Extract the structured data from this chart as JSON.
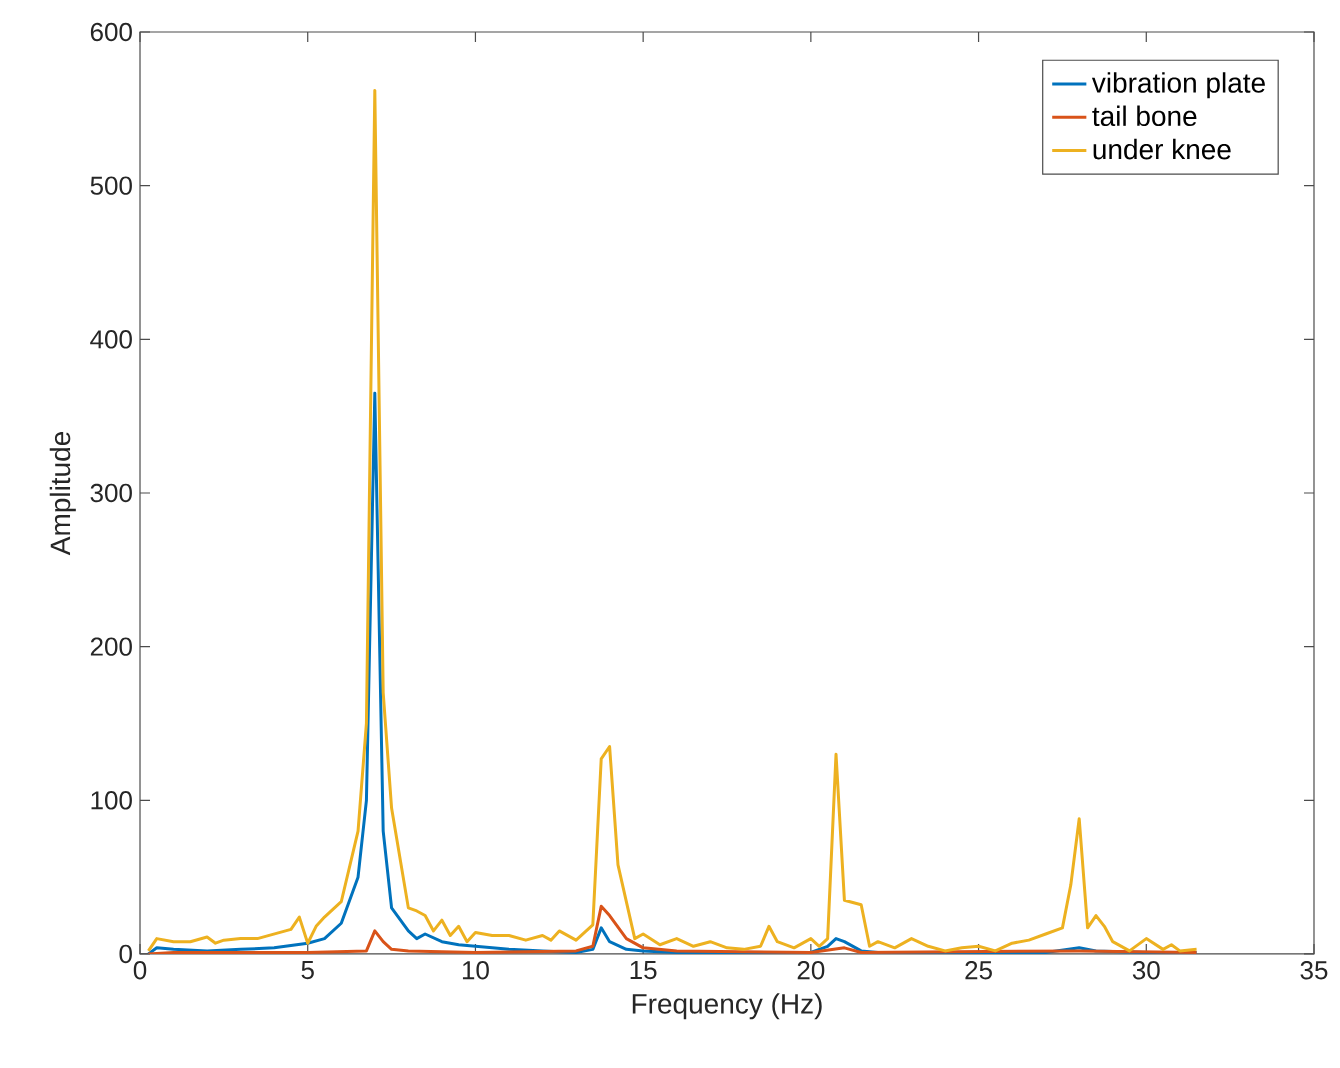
{
  "chart_data": {
    "type": "line",
    "xlabel": "Frequency (Hz)",
    "ylabel": "Amplitude",
    "xlim": [
      0,
      35
    ],
    "ylim": [
      0,
      600
    ],
    "xticks": [
      0,
      5,
      10,
      15,
      20,
      25,
      30,
      35
    ],
    "yticks": [
      0,
      100,
      200,
      300,
      400,
      500,
      600
    ],
    "legend": "top right",
    "series": [
      {
        "name": "vibration plate",
        "color": "#0072bd",
        "x": [
          0.25,
          0.5,
          1,
          2,
          3,
          4,
          5,
          5.5,
          6,
          6.5,
          6.75,
          7,
          7.25,
          7.5,
          8,
          8.25,
          8.5,
          9,
          9.5,
          10,
          11,
          12,
          13,
          13.5,
          13.75,
          14,
          14.5,
          15,
          16,
          17,
          20,
          20.5,
          20.75,
          21,
          21.5,
          22,
          25,
          27,
          28,
          28.5,
          30,
          31.5
        ],
        "values": [
          0,
          4,
          3,
          2,
          3,
          4,
          7,
          10,
          20,
          50,
          100,
          365,
          80,
          30,
          15,
          10,
          13,
          8,
          6,
          5,
          3,
          2,
          1,
          3,
          17,
          8,
          3,
          2,
          1,
          1,
          1,
          5,
          10,
          8,
          2,
          1,
          1,
          1,
          4,
          2,
          1,
          1
        ]
      },
      {
        "name": "tail bone",
        "color": "#d95319",
        "x": [
          0.25,
          1,
          5,
          6.75,
          7,
          7.25,
          7.5,
          8,
          10,
          13,
          13.5,
          13.75,
          14,
          14.5,
          15,
          16,
          20,
          21,
          21.5,
          28,
          31.5
        ],
        "values": [
          0,
          1,
          1,
          2,
          15,
          8,
          3,
          2,
          1,
          2,
          5,
          31,
          25,
          10,
          4,
          2,
          1,
          4,
          1,
          2,
          1
        ]
      },
      {
        "name": "under knee",
        "color": "#edb120",
        "x": [
          0.25,
          0.5,
          1,
          1.5,
          2,
          2.25,
          2.5,
          3,
          3.5,
          4,
          4.5,
          4.75,
          5,
          5.25,
          5.5,
          6,
          6.5,
          6.75,
          7,
          7.25,
          7.5,
          8,
          8.25,
          8.5,
          8.75,
          9,
          9.25,
          9.5,
          9.75,
          10,
          10.5,
          11,
          11.5,
          12,
          12.25,
          12.5,
          13,
          13.5,
          13.75,
          14,
          14.25,
          14.75,
          15,
          15.5,
          16,
          16.5,
          17,
          17.5,
          18,
          18.5,
          18.75,
          19,
          19.5,
          20,
          20.25,
          20.5,
          20.75,
          21,
          21.5,
          21.75,
          22,
          22.5,
          23,
          23.5,
          24,
          24.5,
          25,
          25.5,
          26,
          26.5,
          27,
          27.5,
          27.75,
          28,
          28.25,
          28.5,
          28.75,
          29,
          29.5,
          30,
          30.5,
          30.75,
          31,
          31.5
        ],
        "values": [
          2,
          10,
          8,
          8,
          11,
          7,
          9,
          10,
          10,
          13,
          16,
          24,
          7,
          18,
          24,
          34,
          80,
          150,
          562,
          170,
          95,
          30,
          28,
          25,
          15,
          22,
          12,
          18,
          8,
          14,
          12,
          12,
          9,
          12,
          9,
          15,
          9,
          19,
          127,
          135,
          58,
          10,
          13,
          6,
          10,
          5,
          8,
          4,
          3,
          5,
          18,
          8,
          4,
          10,
          5,
          10,
          130,
          35,
          32,
          5,
          8,
          4,
          10,
          5,
          2,
          4,
          5,
          2,
          7,
          9,
          13,
          17,
          45,
          88,
          17,
          25,
          18,
          8,
          2,
          10,
          3,
          6,
          2,
          3
        ]
      }
    ]
  }
}
